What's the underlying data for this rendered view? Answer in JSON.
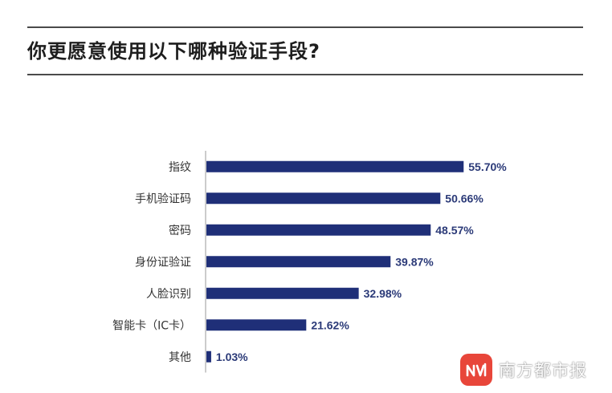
{
  "title": "你更愿意使用以下哪种验证手段?",
  "watermark": {
    "text": "南方都市报",
    "logo_color": "#e8463a"
  },
  "colors": {
    "bar": "#1f2f78",
    "value_text": "#2b3a78",
    "axis": "#9a9a9a",
    "rule": "#4a4a4a"
  },
  "chart_data": {
    "type": "bar",
    "orientation": "horizontal",
    "categories": [
      "指纹",
      "手机验证码",
      "密码",
      "身份证验证",
      "人脸识别",
      "智能卡（IC卡）",
      "其他"
    ],
    "values": [
      55.7,
      50.66,
      48.57,
      39.87,
      32.98,
      21.62,
      1.03
    ],
    "value_labels": [
      "55.70%",
      "50.66%",
      "48.57%",
      "39.87%",
      "32.98%",
      "21.62%",
      "1.03%"
    ],
    "title": "你更愿意使用以下哪种验证手段?",
    "xlabel": "",
    "ylabel": "",
    "xlim": [
      0,
      56
    ],
    "grid": false,
    "legend": "none"
  }
}
